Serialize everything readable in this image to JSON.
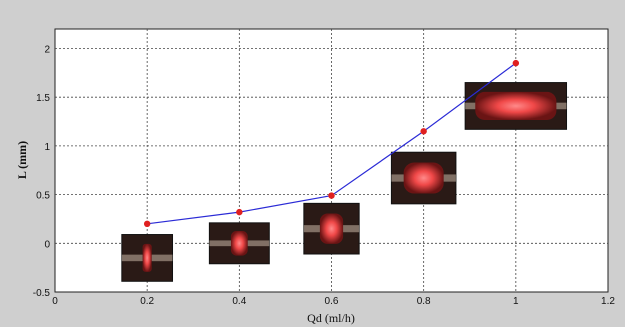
{
  "chart_data": {
    "type": "line",
    "xlabel": "Qd (ml/h)",
    "ylabel": "L (mm)",
    "xlim": [
      0,
      1.2
    ],
    "ylim": [
      -0.5,
      2.2
    ],
    "x_ticks": [
      "0",
      "0.2",
      "0.4",
      "0.6",
      "0.8",
      "1",
      "1.2"
    ],
    "y_ticks": [
      "-0.5",
      "0",
      "0.5",
      "1",
      "1.5",
      "2"
    ],
    "grid": true,
    "series": [
      {
        "x": [
          0.2,
          0.4,
          0.6,
          0.8,
          1.0
        ],
        "y": [
          0.2,
          0.32,
          0.49,
          1.15,
          1.85
        ],
        "line_color": "#2b2bd6",
        "marker_color": "#e02020"
      }
    ],
    "annotations": [
      {
        "at_x": 0.2,
        "center_y": -0.15,
        "width_x": 0.11,
        "height_y": 0.48,
        "glow_fraction": 0.18
      },
      {
        "at_x": 0.4,
        "center_y": 0.0,
        "width_x": 0.13,
        "height_y": 0.42,
        "glow_fraction": 0.28
      },
      {
        "at_x": 0.6,
        "center_y": 0.15,
        "width_x": 0.12,
        "height_y": 0.52,
        "glow_fraction": 0.42
      },
      {
        "at_x": 0.8,
        "center_y": 0.67,
        "width_x": 0.14,
        "height_y": 0.53,
        "glow_fraction": 0.62
      },
      {
        "at_x": 1.0,
        "center_y": 1.41,
        "width_x": 0.22,
        "height_y": 0.48,
        "glow_fraction": 0.8
      }
    ]
  }
}
